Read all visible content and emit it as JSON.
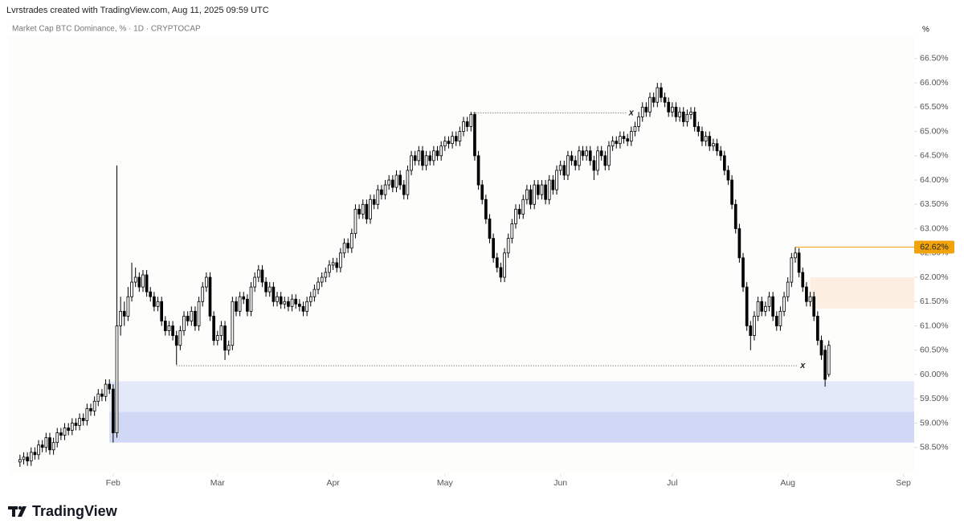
{
  "header": {
    "credit": "Lvrstrades created with TradingView.com, Aug 11, 2025 09:59 UTC",
    "symbol": "Market Cap BTC Dominance, % · 1D · CRYPTOCAP",
    "unit": "%"
  },
  "footer": {
    "brand": "TradingView"
  },
  "chart_data": {
    "type": "candlestick",
    "up_color": "#ffffff",
    "down_color": "#000000",
    "xlim": [
      -3.2,
      239.9
    ],
    "ylim": [
      57.95,
      66.96
    ],
    "xticks": [
      {
        "value": 25,
        "label": "Feb"
      },
      {
        "value": 53,
        "label": "Mar"
      },
      {
        "value": 84,
        "label": "Apr"
      },
      {
        "value": 114,
        "label": "May"
      },
      {
        "value": 145,
        "label": "Jun"
      },
      {
        "value": 175,
        "label": "Jul"
      },
      {
        "value": 206,
        "label": "Aug"
      },
      {
        "value": 237,
        "label": "Sep"
      }
    ],
    "yticks": [
      {
        "value": 58.5,
        "label": "58.50%"
      },
      {
        "value": 59,
        "label": "59.00%"
      },
      {
        "value": 59.5,
        "label": "59.50%"
      },
      {
        "value": 60,
        "label": "60.00%"
      },
      {
        "value": 60.5,
        "label": "60.50%"
      },
      {
        "value": 61,
        "label": "61.00%"
      },
      {
        "value": 61.5,
        "label": "61.50%"
      },
      {
        "value": 62,
        "label": "62.00%"
      },
      {
        "value": 62.5,
        "label": "62.50%"
      },
      {
        "value": 63,
        "label": "63.00%"
      },
      {
        "value": 63.5,
        "label": "63.50%"
      },
      {
        "value": 64,
        "label": "64.00%"
      },
      {
        "value": 64.5,
        "label": "64.50%"
      },
      {
        "value": 65,
        "label": "65.00%"
      },
      {
        "value": 65.5,
        "label": "65.50%"
      },
      {
        "value": 66,
        "label": "66.00%"
      },
      {
        "value": 66.5,
        "label": "66.50%"
      }
    ],
    "open": [
      58.2,
      58.25,
      58.3,
      58.22,
      58.4,
      58.35,
      58.55,
      58.5,
      58.7,
      58.45,
      58.6,
      58.8,
      58.75,
      58.9,
      58.85,
      59.0,
      58.95,
      59.1,
      59.05,
      59.3,
      59.25,
      59.45,
      59.6,
      59.55,
      59.8,
      59.7,
      58.8,
      61.0,
      61.3,
      61.2,
      61.6,
      61.9,
      62.0,
      61.8,
      62.05,
      61.7,
      61.6,
      61.4,
      61.5,
      61.1,
      60.9,
      61.0,
      60.8,
      60.6,
      60.9,
      61.2,
      61.1,
      61.3,
      61.0,
      61.5,
      61.8,
      62.0,
      61.2,
      60.7,
      60.8,
      61.0,
      60.5,
      60.6,
      61.5,
      61.3,
      61.6,
      61.55,
      61.3,
      61.8,
      62.0,
      62.15,
      61.9,
      61.7,
      61.8,
      61.5,
      61.6,
      61.45,
      61.5,
      61.4,
      61.55,
      61.45,
      61.4,
      61.3,
      61.5,
      61.6,
      61.75,
      61.9,
      62.0,
      62.1,
      62.25,
      62.3,
      62.2,
      62.5,
      62.7,
      62.6,
      62.9,
      63.4,
      63.3,
      63.5,
      63.2,
      63.6,
      63.5,
      63.8,
      63.7,
      63.9,
      64.0,
      63.85,
      64.1,
      63.9,
      63.7,
      64.2,
      64.5,
      64.4,
      64.6,
      64.3,
      64.5,
      64.4,
      64.6,
      64.5,
      64.7,
      64.8,
      64.75,
      64.9,
      64.8,
      65.0,
      65.2,
      65.1,
      65.35,
      64.5,
      63.9,
      63.6,
      63.2,
      62.8,
      62.4,
      62.2,
      62.0,
      62.5,
      62.8,
      63.1,
      63.4,
      63.3,
      63.6,
      63.8,
      63.5,
      63.9,
      63.7,
      63.9,
      63.6,
      64.0,
      63.8,
      64.2,
      64.3,
      64.1,
      64.5,
      64.4,
      64.3,
      64.6,
      64.5,
      64.6,
      64.4,
      64.2,
      64.6,
      64.5,
      64.3,
      64.7,
      64.8,
      64.75,
      64.9,
      64.85,
      64.8,
      65.0,
      65.1,
      65.3,
      65.5,
      65.4,
      65.7,
      65.6,
      65.9,
      65.7,
      65.6,
      65.4,
      65.5,
      65.3,
      65.4,
      65.2,
      65.35,
      65.4,
      65.1,
      65.0,
      64.8,
      64.9,
      64.7,
      64.75,
      64.6,
      64.5,
      64.2,
      64.0,
      63.5,
      63.0,
      62.4,
      61.8,
      61.0,
      60.8,
      61.2,
      61.5,
      61.3,
      61.4,
      61.6,
      61.2,
      61.0,
      61.3,
      61.6,
      61.9,
      62.4,
      62.5,
      62.1,
      61.8,
      61.5,
      61.6,
      61.2,
      60.7,
      60.5,
      60.0
    ],
    "high": [
      58.35,
      58.4,
      58.4,
      58.5,
      58.5,
      58.65,
      58.65,
      58.8,
      58.8,
      58.7,
      58.9,
      58.9,
      59.0,
      59.0,
      59.1,
      59.1,
      59.2,
      59.2,
      59.4,
      59.4,
      59.55,
      59.7,
      59.7,
      59.9,
      59.9,
      59.8,
      64.3,
      61.6,
      61.5,
      61.8,
      62.3,
      62.2,
      62.1,
      62.15,
      62.15,
      61.8,
      61.7,
      61.6,
      61.6,
      61.2,
      61.1,
      61.1,
      60.9,
      61.0,
      61.3,
      61.3,
      61.4,
      61.4,
      61.6,
      61.9,
      62.1,
      62.1,
      61.3,
      60.9,
      61.1,
      61.1,
      60.7,
      61.6,
      61.6,
      61.7,
      61.7,
      61.65,
      61.9,
      62.1,
      62.25,
      62.25,
      62.0,
      61.9,
      61.9,
      61.7,
      61.7,
      61.6,
      61.6,
      61.65,
      61.65,
      61.55,
      61.5,
      61.6,
      61.7,
      61.85,
      62.0,
      62.1,
      62.2,
      62.35,
      62.4,
      62.4,
      62.6,
      62.8,
      62.8,
      63.0,
      63.5,
      63.5,
      63.6,
      63.6,
      63.7,
      63.7,
      63.9,
      63.9,
      64.0,
      64.1,
      64.1,
      64.2,
      64.2,
      64.0,
      64.3,
      64.6,
      64.6,
      64.7,
      64.7,
      64.6,
      64.6,
      64.7,
      64.7,
      64.8,
      64.9,
      64.9,
      65.0,
      65.0,
      65.1,
      65.3,
      65.3,
      65.4,
      65.4,
      64.6,
      64.0,
      63.7,
      63.3,
      62.9,
      62.5,
      62.3,
      62.6,
      62.9,
      63.2,
      63.5,
      63.5,
      63.7,
      63.9,
      63.9,
      64.0,
      64.0,
      64.0,
      64.0,
      64.1,
      64.1,
      64.3,
      64.4,
      64.4,
      64.6,
      64.6,
      64.5,
      64.7,
      64.7,
      64.7,
      64.7,
      64.5,
      64.7,
      64.7,
      64.6,
      64.8,
      64.9,
      64.9,
      65.0,
      65.0,
      64.95,
      65.1,
      65.2,
      65.4,
      65.6,
      65.6,
      65.8,
      65.8,
      66.0,
      66.0,
      65.8,
      65.7,
      65.6,
      65.6,
      65.5,
      65.5,
      65.45,
      65.5,
      65.5,
      65.2,
      65.1,
      65.0,
      65.0,
      64.85,
      64.85,
      64.7,
      64.6,
      64.3,
      64.1,
      63.6,
      63.1,
      62.5,
      61.9,
      61.1,
      61.3,
      61.6,
      61.6,
      61.5,
      61.7,
      61.7,
      61.3,
      61.4,
      61.7,
      62.0,
      62.5,
      62.62,
      62.6,
      62.2,
      61.9,
      61.7,
      61.7,
      61.3,
      60.8,
      60.6,
      60.7
    ],
    "low": [
      58.1,
      58.15,
      58.12,
      58.12,
      58.25,
      58.25,
      58.4,
      58.4,
      58.35,
      58.35,
      58.5,
      58.65,
      58.65,
      58.75,
      58.75,
      58.85,
      58.85,
      58.95,
      58.95,
      59.15,
      59.15,
      59.35,
      59.45,
      59.45,
      59.6,
      58.6,
      58.7,
      60.8,
      61.0,
      61.1,
      61.5,
      61.8,
      61.7,
      61.7,
      61.6,
      61.5,
      61.3,
      61.3,
      61.0,
      60.8,
      60.8,
      60.7,
      60.2,
      60.5,
      60.8,
      61.0,
      61.0,
      60.9,
      60.9,
      61.4,
      61.7,
      61.1,
      60.6,
      60.6,
      60.7,
      60.3,
      60.4,
      60.5,
      61.2,
      61.2,
      61.45,
      61.2,
      61.2,
      61.7,
      61.9,
      61.8,
      61.6,
      61.6,
      61.4,
      61.4,
      61.35,
      61.35,
      61.3,
      61.3,
      61.35,
      61.3,
      61.2,
      61.2,
      61.4,
      61.5,
      61.65,
      61.8,
      61.9,
      62.0,
      62.15,
      62.1,
      62.1,
      62.4,
      62.5,
      62.5,
      62.8,
      63.2,
      63.2,
      63.1,
      63.1,
      63.4,
      63.4,
      63.6,
      63.6,
      63.8,
      63.75,
      63.75,
      63.8,
      63.6,
      63.6,
      64.1,
      64.3,
      64.3,
      64.2,
      64.2,
      64.3,
      64.3,
      64.4,
      64.4,
      64.6,
      64.65,
      64.65,
      64.7,
      64.7,
      64.9,
      65.0,
      65.0,
      64.4,
      63.8,
      63.5,
      63.1,
      62.7,
      62.3,
      62.1,
      61.9,
      61.9,
      62.4,
      62.7,
      63.0,
      63.2,
      63.2,
      63.5,
      63.4,
      63.4,
      63.6,
      63.6,
      63.5,
      63.5,
      63.7,
      63.7,
      64.1,
      64.0,
      64.0,
      64.3,
      64.2,
      64.2,
      64.4,
      64.4,
      64.3,
      64.0,
      64.1,
      64.4,
      64.2,
      64.2,
      64.6,
      64.65,
      64.65,
      64.75,
      64.7,
      64.7,
      64.9,
      65.0,
      65.2,
      65.3,
      65.3,
      65.5,
      65.5,
      65.6,
      65.5,
      65.3,
      65.3,
      65.2,
      65.2,
      65.1,
      65.1,
      65.25,
      65.0,
      64.9,
      64.7,
      64.7,
      64.6,
      64.6,
      64.5,
      64.4,
      64.1,
      63.9,
      63.4,
      62.9,
      62.3,
      61.7,
      60.9,
      60.5,
      60.7,
      61.1,
      61.2,
      61.2,
      61.3,
      61.1,
      60.9,
      60.9,
      61.2,
      61.5,
      61.8,
      62.3,
      62.0,
      61.7,
      61.4,
      61.4,
      61.1,
      60.6,
      60.3,
      59.75,
      59.95
    ],
    "close": [
      58.25,
      58.3,
      58.22,
      58.4,
      58.35,
      58.55,
      58.5,
      58.7,
      58.45,
      58.6,
      58.8,
      58.75,
      58.9,
      58.85,
      59.0,
      58.95,
      59.1,
      59.05,
      59.3,
      59.25,
      59.45,
      59.6,
      59.55,
      59.8,
      59.7,
      58.8,
      61.0,
      61.3,
      61.2,
      61.6,
      61.9,
      62.0,
      61.8,
      62.05,
      61.7,
      61.6,
      61.4,
      61.5,
      61.1,
      60.9,
      61.0,
      60.8,
      60.6,
      60.9,
      61.2,
      61.1,
      61.3,
      61.0,
      61.5,
      61.8,
      62.0,
      61.2,
      60.7,
      60.8,
      61.0,
      60.5,
      60.6,
      61.5,
      61.3,
      61.6,
      61.55,
      61.3,
      61.8,
      62.0,
      62.15,
      61.9,
      61.7,
      61.8,
      61.5,
      61.6,
      61.45,
      61.5,
      61.4,
      61.55,
      61.45,
      61.4,
      61.3,
      61.5,
      61.6,
      61.75,
      61.9,
      62.0,
      62.1,
      62.25,
      62.3,
      62.2,
      62.5,
      62.7,
      62.6,
      62.9,
      63.4,
      63.3,
      63.5,
      63.2,
      63.6,
      63.5,
      63.8,
      63.7,
      63.9,
      64.0,
      63.85,
      64.1,
      63.9,
      63.7,
      64.2,
      64.5,
      64.4,
      64.6,
      64.3,
      64.5,
      64.4,
      64.6,
      64.5,
      64.7,
      64.8,
      64.75,
      64.9,
      64.8,
      65.0,
      65.2,
      65.1,
      65.35,
      64.5,
      63.9,
      63.6,
      63.2,
      62.8,
      62.4,
      62.2,
      62.0,
      62.5,
      62.8,
      63.1,
      63.4,
      63.3,
      63.6,
      63.8,
      63.5,
      63.9,
      63.7,
      63.9,
      63.6,
      64.0,
      63.8,
      64.2,
      64.3,
      64.1,
      64.5,
      64.4,
      64.3,
      64.6,
      64.5,
      64.6,
      64.4,
      64.2,
      64.6,
      64.5,
      64.3,
      64.7,
      64.8,
      64.75,
      64.9,
      64.85,
      64.8,
      65.0,
      65.1,
      65.3,
      65.5,
      65.4,
      65.7,
      65.6,
      65.9,
      65.7,
      65.6,
      65.4,
      65.5,
      65.3,
      65.4,
      65.2,
      65.35,
      65.4,
      65.1,
      65.0,
      64.8,
      64.9,
      64.7,
      64.75,
      64.6,
      64.5,
      64.2,
      64.0,
      63.5,
      63.0,
      62.4,
      61.8,
      61.0,
      60.8,
      61.2,
      61.5,
      61.3,
      61.4,
      61.6,
      61.2,
      61.0,
      61.3,
      61.6,
      61.9,
      62.4,
      62.5,
      62.1,
      61.8,
      61.5,
      61.6,
      61.2,
      60.7,
      60.4,
      59.9,
      60.6
    ],
    "zones": [
      {
        "from": 24,
        "ymin": 59.23,
        "ymax": 59.86,
        "color": "#e4e9fa"
      },
      {
        "from": 24,
        "ymin": 58.6,
        "ymax": 59.23,
        "color": "#d0d8f5"
      },
      {
        "from": 212,
        "ymin": 61.36,
        "ymax": 62.0,
        "color": "#fdeee2"
      }
    ],
    "levels": [
      {
        "value": 65.38,
        "from": 121,
        "to": 164,
        "label": "x"
      },
      {
        "value": 60.18,
        "from": 42,
        "to": 210,
        "label": "x"
      }
    ],
    "price_line": {
      "value": 62.62,
      "label": "62.62%",
      "from": 208,
      "color": "#f0a30a"
    }
  }
}
